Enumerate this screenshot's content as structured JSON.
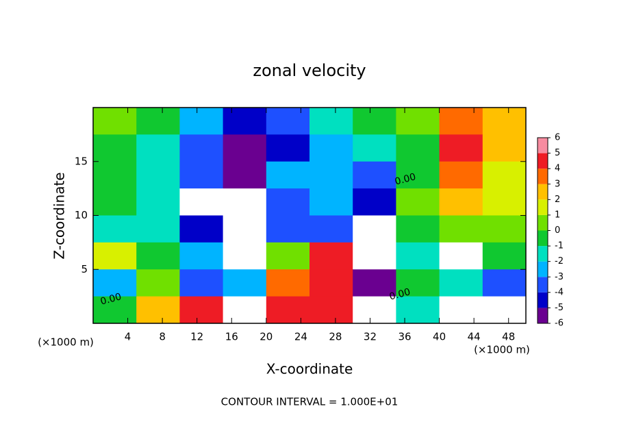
{
  "chart_data": {
    "type": "heatmap",
    "title": "zonal velocity",
    "x_label": "X-coordinate",
    "y_label": "Z-coordinate",
    "x_unit_label": "(×1000 m)",
    "y_unit_label": "(×1000 m)",
    "footer": "CONTOUR INTERVAL = 1.000E+01",
    "annotations": [
      "0.00",
      "0.00",
      "0.00"
    ],
    "x": [
      2.5,
      7.5,
      12.5,
      17.5,
      22.5,
      27.5,
      32.5,
      37.5,
      42.5,
      47.5
    ],
    "z": [
      18.75,
      16.25,
      13.75,
      11.25,
      8.75,
      6.25,
      3.75,
      1.25
    ],
    "values": [
      [
        1,
        0,
        -2,
        -4,
        -3,
        -1,
        0,
        1,
        4,
        3
      ],
      [
        0,
        -1,
        -3,
        -5,
        -4,
        -2,
        -1,
        0,
        5,
        3
      ],
      [
        0,
        -1,
        -3,
        -5,
        -2,
        -2,
        -3,
        0,
        4,
        2
      ],
      [
        0,
        -1,
        -7,
        -7,
        -3,
        -2,
        -4,
        1,
        3,
        2
      ],
      [
        -1,
        -1,
        -4,
        -7,
        -3,
        -3,
        -7,
        0,
        1,
        1
      ],
      [
        2,
        0,
        -2,
        -7,
        1,
        5,
        -7,
        -1,
        7,
        0
      ],
      [
        -2,
        1,
        -3,
        -2,
        4,
        5,
        -5,
        0,
        -1,
        -3
      ],
      [
        0,
        3,
        5,
        7,
        5,
        5,
        7,
        -1,
        7,
        7
      ]
    ],
    "xlim": [
      0,
      50
    ],
    "ylim": [
      0,
      20
    ],
    "xticks": [
      4,
      8,
      12,
      16,
      20,
      24,
      28,
      32,
      36,
      40,
      44,
      48
    ],
    "yticks": [
      5,
      10,
      15
    ],
    "colorbar": {
      "ticks": [
        -6,
        -5,
        -4,
        -3,
        -2,
        -1,
        0,
        1,
        2,
        3,
        4,
        5,
        6
      ],
      "colors": [
        "#6a0090",
        "#0000c8",
        "#1e50ff",
        "#00b4ff",
        "#00e0c0",
        "#10c830",
        "#70e000",
        "#d8f000",
        "#ffc000",
        "#ff6a00",
        "#ee1c25",
        "#f78ca0"
      ]
    }
  }
}
